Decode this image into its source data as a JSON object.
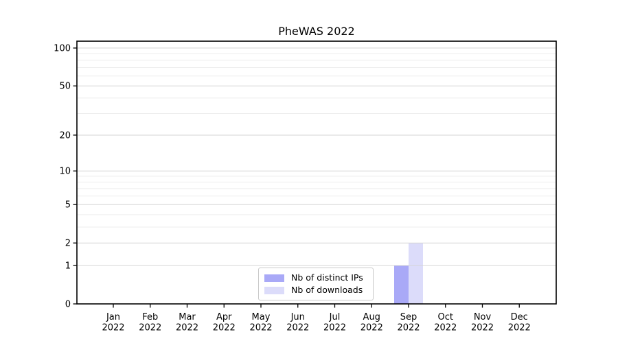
{
  "chart_data": {
    "type": "bar",
    "title": "PheWAS 2022",
    "year_label": "2022",
    "months": [
      "Jan",
      "Feb",
      "Mar",
      "Apr",
      "May",
      "Jun",
      "Jul",
      "Aug",
      "Sep",
      "Oct",
      "Nov",
      "Dec"
    ],
    "series": [
      {
        "name": "Nb of distinct IPs",
        "color": "#a9a9f7",
        "values": [
          0,
          0,
          0,
          0,
          0,
          0,
          0,
          0,
          1,
          0,
          0,
          0
        ]
      },
      {
        "name": "Nb of downloads",
        "color": "#dcdcfa",
        "values": [
          0,
          0,
          0,
          0,
          0,
          0,
          0,
          0,
          2,
          0,
          0,
          0
        ]
      }
    ],
    "y_axis": {
      "scale": "log1p",
      "ticks": [
        0,
        1,
        2,
        5,
        10,
        20,
        50,
        100
      ],
      "minor_ticks": [
        3,
        4,
        6,
        7,
        8,
        9,
        30,
        40,
        60,
        70,
        80,
        90
      ],
      "lim": [
        0,
        113
      ]
    },
    "x_axis": {
      "lim_note": "one slot margin before Jan and after Dec"
    },
    "grid": {
      "orientation": "horizontal",
      "major_color": "#d5d5d5",
      "minor_color": "#ededed"
    },
    "frame_color": "#000000",
    "legend": {
      "position": "lower center inside",
      "border_color": "#c9c9c9"
    }
  }
}
